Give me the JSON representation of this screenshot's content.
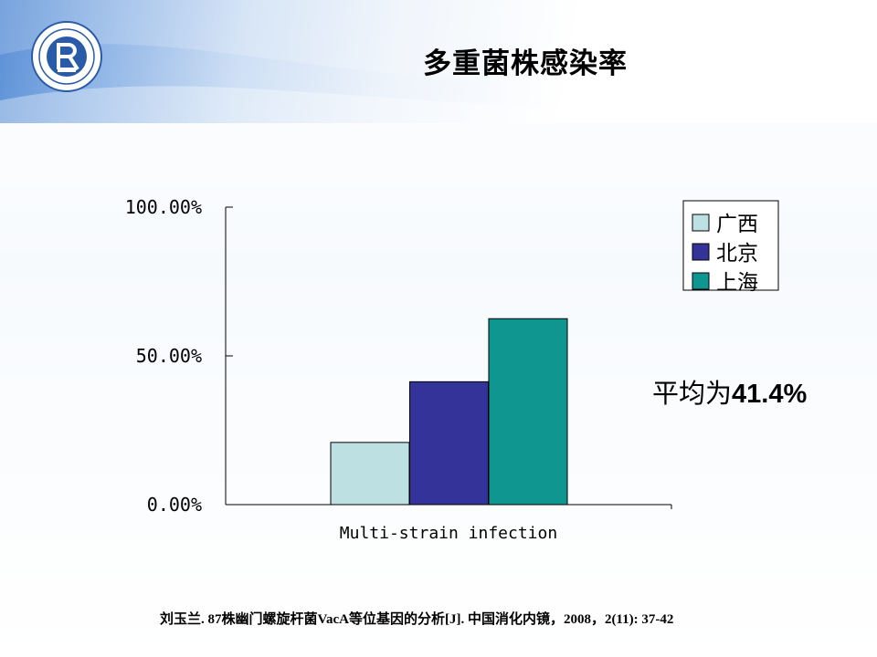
{
  "slide": {
    "title": "多重菌株感染率",
    "side_note_prefix": "平均为",
    "side_note_value": "41.4%",
    "citation": "刘玉兰. 87株幽门螺旋杆菌VacA等位基因的分析[J]. 中国消化内镜，2008，2(11): 37-42"
  },
  "colors": {
    "guangxi": "#bde0e3",
    "beijing": "#333399",
    "shanghai": "#0f9690"
  },
  "chart_data": {
    "type": "bar",
    "categories": [
      "Multi-strain infection"
    ],
    "series": [
      {
        "name": "广西",
        "values": [
          0.209
        ]
      },
      {
        "name": "北京",
        "values": [
          0.413
        ]
      },
      {
        "name": "上海",
        "values": [
          0.625
        ]
      }
    ],
    "ylim": [
      0,
      1
    ],
    "yticks": [
      "0.00%",
      "50.00%",
      "100.00%"
    ],
    "ytick_values": [
      0,
      0.5,
      1
    ],
    "legend_position": "top-right",
    "grid": false
  }
}
